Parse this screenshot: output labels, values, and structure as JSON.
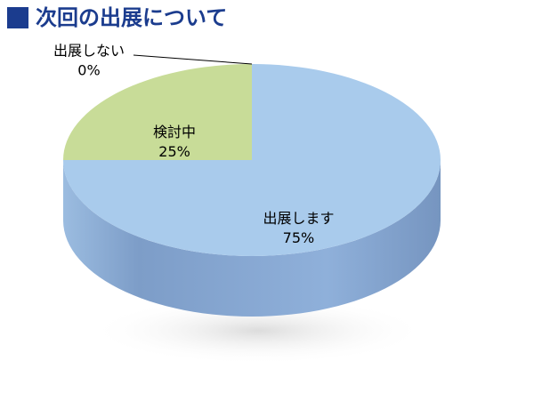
{
  "chart_data": {
    "type": "pie3d",
    "title": "次回の出展について",
    "categories": [
      "出展します",
      "検討中",
      "出展しない"
    ],
    "values": [
      75,
      25,
      0
    ],
    "value_labels": [
      "75%",
      "25%",
      "0%"
    ],
    "colors": [
      "#a9cbec",
      "#c8dc98",
      "#e6a5a5"
    ]
  }
}
